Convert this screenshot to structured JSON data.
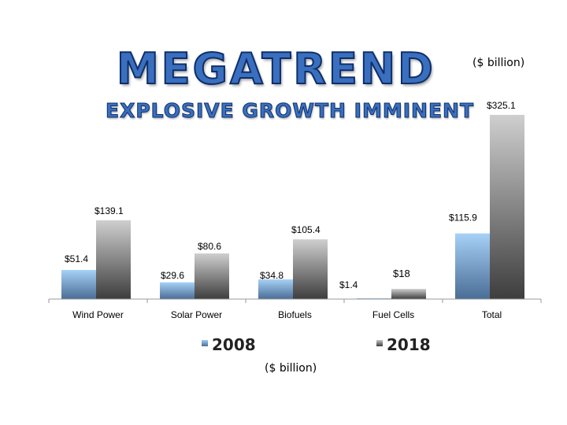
{
  "header": {
    "title": "MEGATREND",
    "subtitle": "EXPLOSIVE GROWTH IMMINENT",
    "unit_top": "($ billion)",
    "unit_bottom": "($ billion)"
  },
  "legend": {
    "items": [
      {
        "label": "2008",
        "color": "#7fb3e8"
      },
      {
        "label": "2018",
        "color": "#8a8a8a"
      }
    ]
  },
  "chart_data": {
    "type": "bar",
    "title": "MEGATREND",
    "subtitle": "EXPLOSIVE GROWTH IMMINENT",
    "ylabel": "($ billion)",
    "xlabel": "",
    "categories": [
      "Wind Power",
      "Solar Power",
      "Biofuels",
      "Fuel Cells",
      "Total"
    ],
    "series": [
      {
        "name": "2008",
        "values": [
          51.4,
          29.6,
          34.8,
          1.4,
          115.9
        ],
        "labels": [
          "$51.4",
          "$29.6",
          "$34.8",
          "$1.4",
          "$115.9"
        ],
        "color": "#7fb3e8"
      },
      {
        "name": "2018",
        "values": [
          139.1,
          80.6,
          105.4,
          18,
          325.1
        ],
        "labels": [
          "$139.1",
          "$80.6",
          "$105.4",
          "$18",
          "$325.1"
        ],
        "color": "#8a8a8a"
      }
    ],
    "legend_position": "bottom",
    "grid": false
  }
}
